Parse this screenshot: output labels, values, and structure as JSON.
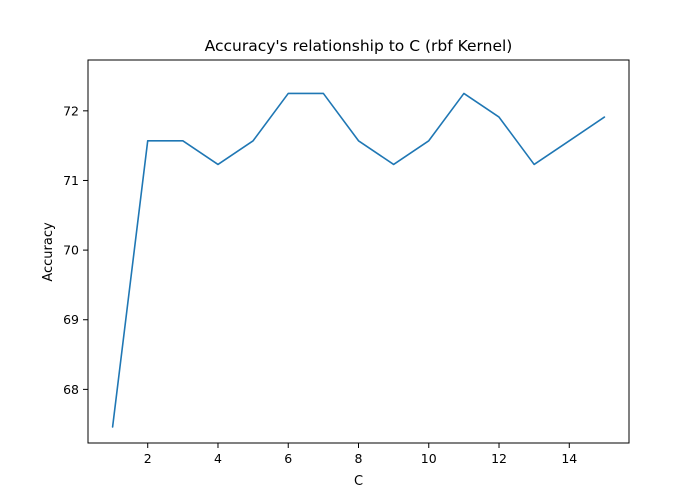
{
  "chart_data": {
    "type": "line",
    "title": "Accuracy's relationship to C (rbf Kernel)",
    "xlabel": "C",
    "ylabel": "Accuracy",
    "xlim": [
      0.3,
      15.7
    ],
    "ylim": [
      67.23,
      72.73
    ],
    "xticks": [
      2,
      4,
      6,
      8,
      10,
      12,
      14
    ],
    "yticks": [
      68,
      69,
      70,
      71,
      72
    ],
    "grid": false,
    "series": [
      {
        "color": "#1f77b4",
        "x": [
          1,
          2,
          3,
          4,
          5,
          6,
          7,
          8,
          9,
          10,
          11,
          12,
          13,
          14,
          15
        ],
        "y": [
          67.46,
          71.57,
          71.57,
          71.23,
          71.57,
          72.25,
          72.25,
          71.57,
          71.23,
          71.57,
          72.25,
          71.91,
          71.23,
          71.57,
          71.91
        ]
      }
    ]
  }
}
